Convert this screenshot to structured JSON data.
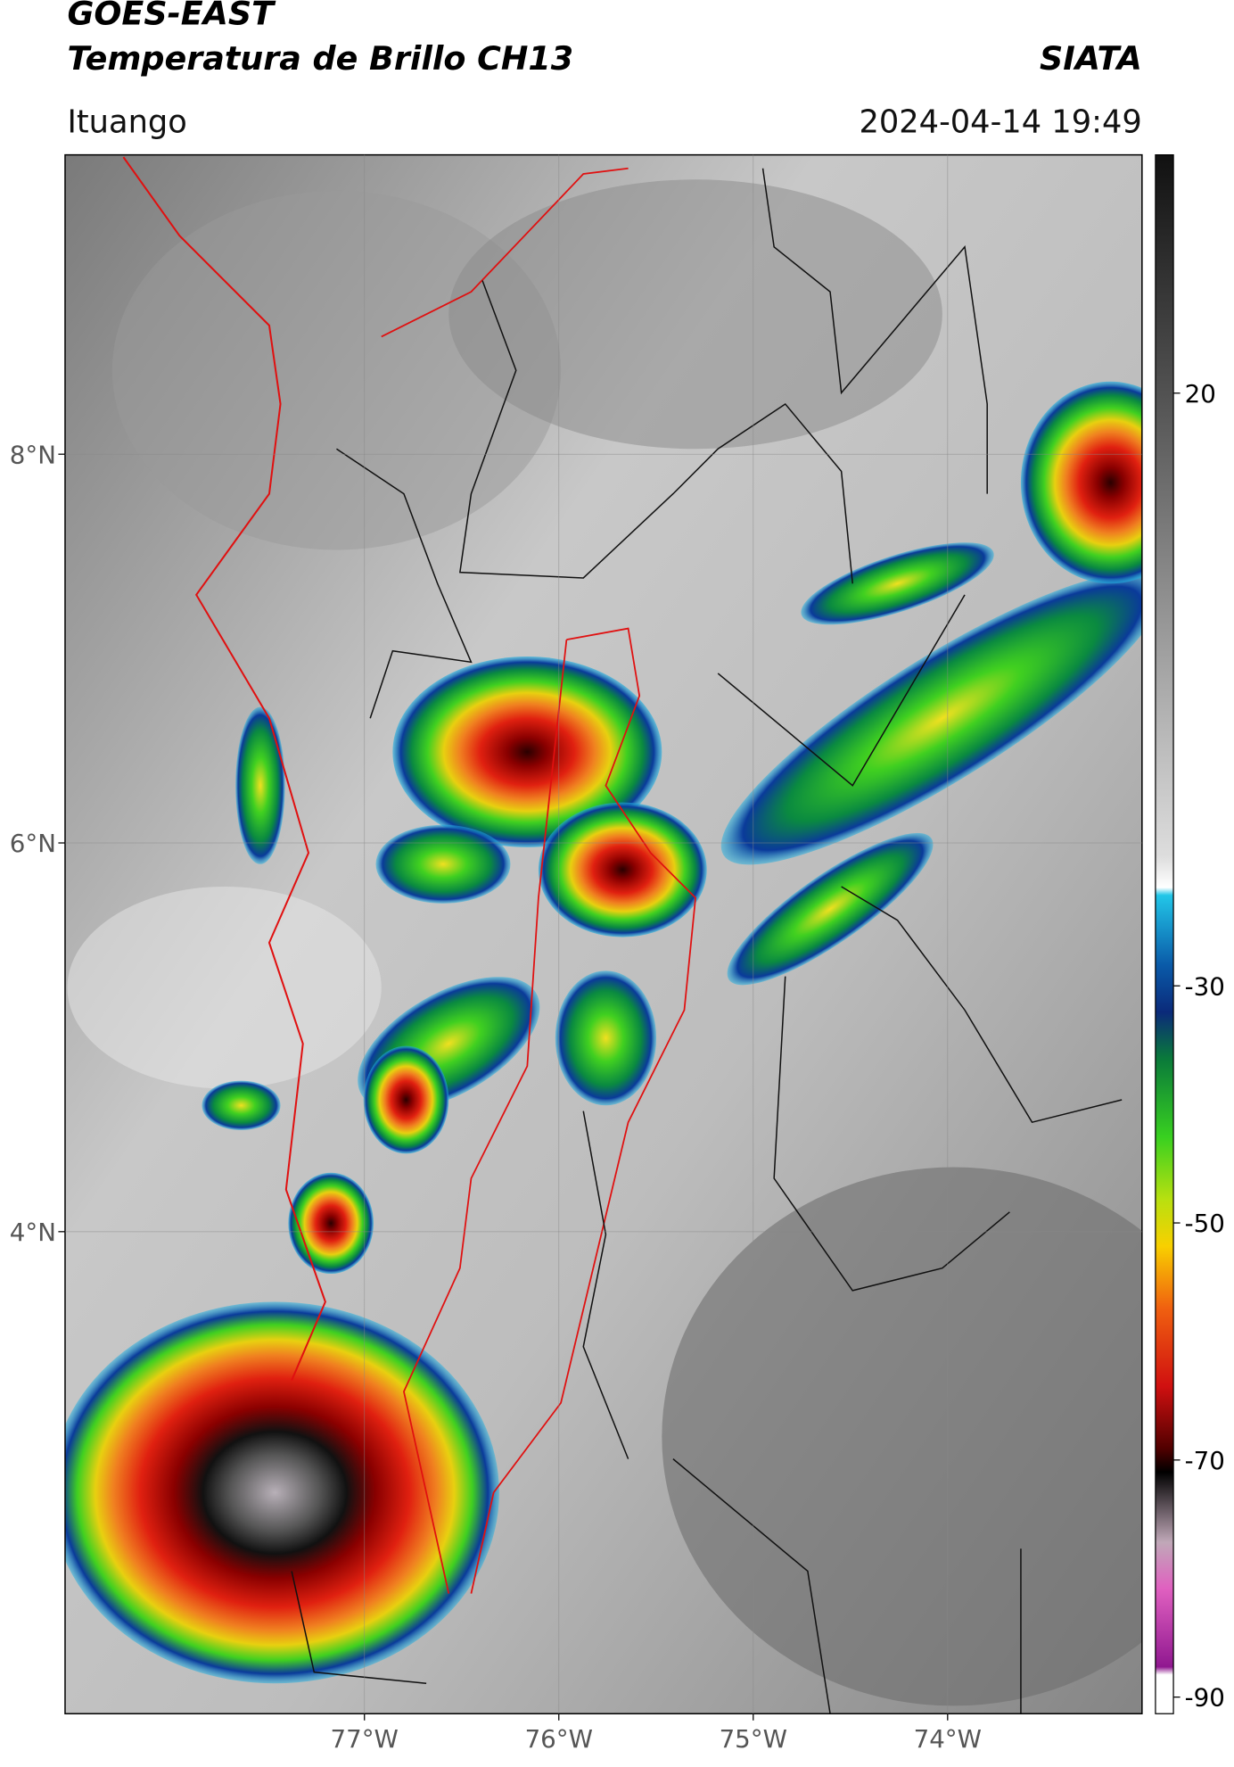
{
  "header": {
    "title_line1": "GOES-EAST",
    "title_line2": "Temperatura de Brillo CH13",
    "source": "SIATA",
    "location": "Ituango",
    "timestamp": "2024-04-14 19:49"
  },
  "map": {
    "lonlim": [
      -78.54,
      -73.0
    ],
    "latlim": [
      1.52,
      9.54
    ],
    "lat_ticks": [
      {
        "value": 8,
        "label": "8°N"
      },
      {
        "value": 6,
        "label": "6°N"
      },
      {
        "value": 4,
        "label": "4°N"
      }
    ],
    "lon_ticks": [
      {
        "value": -77,
        "label": "77°W"
      },
      {
        "value": -76,
        "label": "76°W"
      },
      {
        "value": -75,
        "label": "75°W"
      },
      {
        "value": -74,
        "label": "74°W"
      }
    ],
    "grid": true
  },
  "colorbar": {
    "lim": [
      -91.4,
      40.1
    ],
    "ticks": [
      20,
      -30,
      -50,
      -70,
      -90
    ]
  }
}
